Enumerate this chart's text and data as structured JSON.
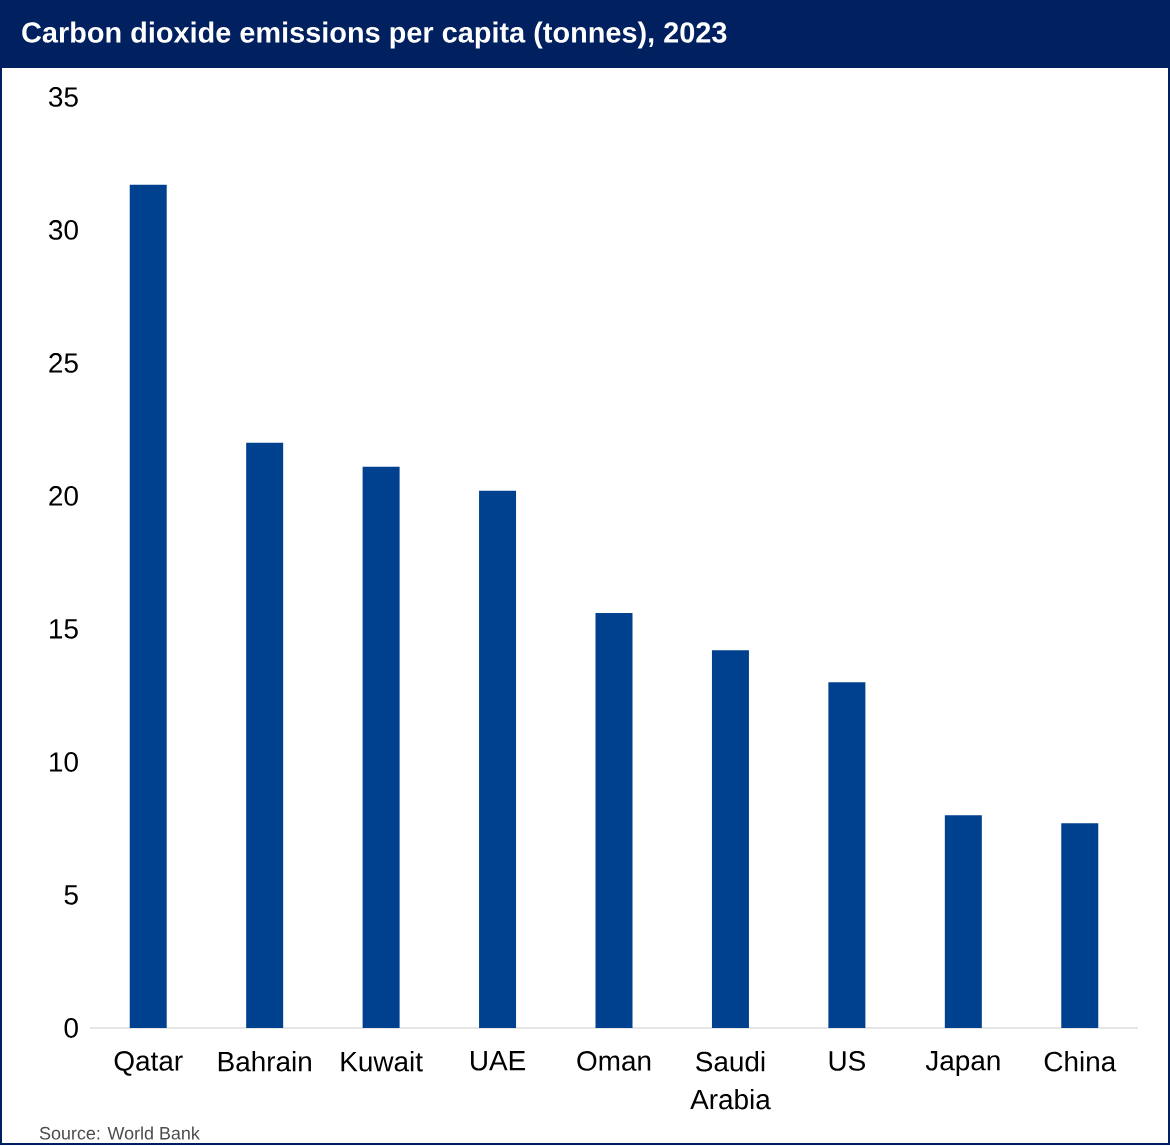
{
  "chart_data": {
    "type": "bar",
    "title": "Carbon dioxide emissions per capita (tonnes), 2023",
    "categories": [
      "Qatar",
      "Bahrain",
      "Kuwait",
      "UAE",
      "Oman",
      "Saudi Arabia",
      "US",
      "Japan",
      "China"
    ],
    "values": [
      31.7,
      22.0,
      21.1,
      20.2,
      15.6,
      14.2,
      13.0,
      8.0,
      7.7
    ],
    "color": "#00418f",
    "ylim": [
      0,
      35
    ],
    "yticks": [
      0,
      5,
      10,
      15,
      20,
      25,
      30,
      35
    ],
    "annotations": [
      "Source: World Bank"
    ]
  }
}
